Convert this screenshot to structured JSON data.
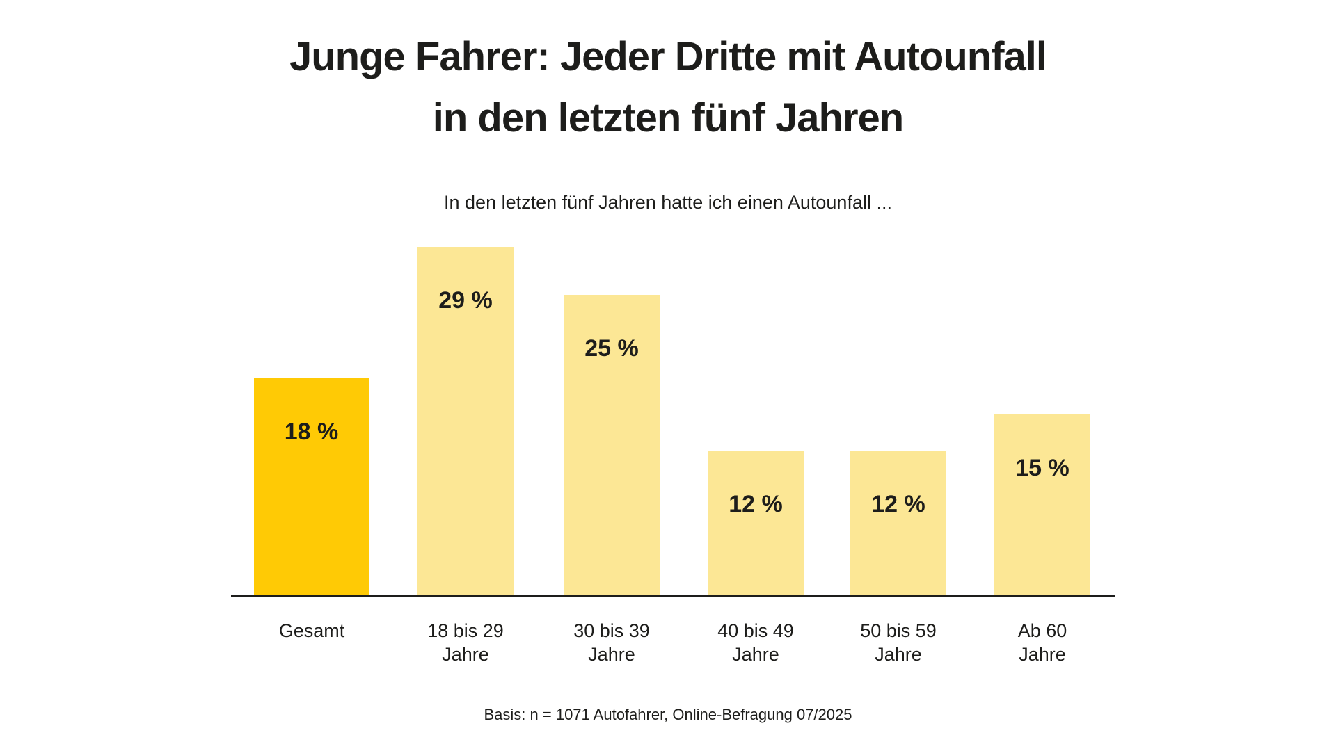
{
  "title": {
    "line1": "Junge Fahrer: Jeder Dritte mit Autounfall",
    "line2": "in den letzten fünf Jahren"
  },
  "subtitle": "In den letzten fünf Jahren hatte ich einen Autounfall ...",
  "source_note": "Basis: n = 1071 Autofahrer, Online-Befragung 07/2025",
  "colors": {
    "bar_highlight": "#ffca05",
    "bar_normal": "#fce795",
    "text": "#1d1d1b",
    "axis": "#1d1d1b",
    "background": "#ffffff"
  },
  "chart_data": {
    "type": "bar",
    "title": "Junge Fahrer: Jeder Dritte mit Autounfall in den letzten fünf Jahren",
    "subtitle": "In den letzten fünf Jahren hatte ich einen Autounfall ...",
    "categories": [
      "Gesamt",
      "18 bis 29 Jahre",
      "30 bis 39 Jahre",
      "40 bis 49 Jahre",
      "50 bis 59 Jahre",
      "Ab 60 Jahre"
    ],
    "category_lines": [
      [
        "Gesamt"
      ],
      [
        "18 bis 29",
        "Jahre"
      ],
      [
        "30 bis 39",
        "Jahre"
      ],
      [
        "40 bis 49",
        "Jahre"
      ],
      [
        "50 bis 59",
        "Jahre"
      ],
      [
        "Ab 60",
        "Jahre"
      ]
    ],
    "values": [
      18,
      29,
      25,
      12,
      12,
      15
    ],
    "value_labels": [
      "18 %",
      "29 %",
      "25 %",
      "12 %",
      "12 %",
      "15 %"
    ],
    "unit": "percent",
    "highlighted_index": 0,
    "ylim": [
      0,
      30
    ],
    "grid": false,
    "legend": null,
    "source": "Basis: n = 1071 Autofahrer, Online-Befragung 07/2025"
  }
}
